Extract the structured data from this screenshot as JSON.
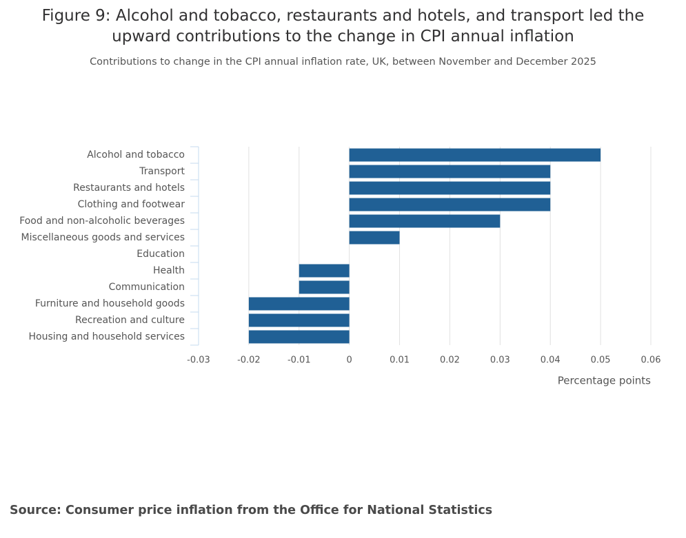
{
  "chart_data": {
    "type": "hbar",
    "title": "Figure 9: Alcohol and tobacco, restaurants and hotels, and transport led the upward contributions to the change in CPI annual inflation",
    "subtitle": "Contributions to change in the CPI annual inflation rate, UK, between November and December 2025",
    "categories": [
      "Alcohol and tobacco",
      "Transport",
      "Restaurants and hotels",
      "Clothing and footwear",
      "Food and non-alcoholic beverages",
      "Miscellaneous goods and services",
      "Education",
      "Health",
      "Communication",
      "Furniture and household goods",
      "Recreation and culture",
      "Housing and household services"
    ],
    "values": [
      0.05,
      0.04,
      0.04,
      0.04,
      0.03,
      0.01,
      0,
      -0.01,
      -0.01,
      -0.02,
      -0.02,
      -0.02
    ],
    "color": "#206095",
    "xlim": [
      -0.03,
      0.06
    ],
    "xticks": [
      -0.03,
      -0.02,
      -0.01,
      0,
      0.01,
      0.02,
      0.03,
      0.04,
      0.05,
      0.06
    ],
    "xlabel": "Percentage points",
    "grid": true,
    "source": "Source: Consumer price inflation from the Office for National Statistics"
  }
}
